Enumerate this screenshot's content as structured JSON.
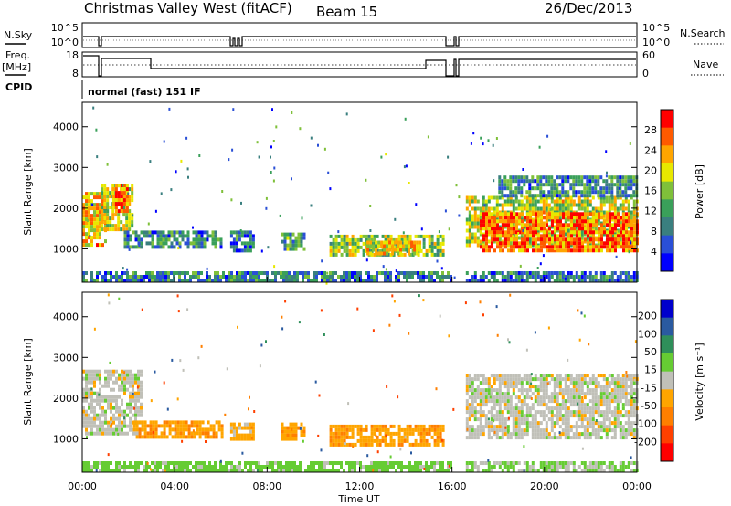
{
  "header": {
    "station": "Christmas Valley West (fitACF)",
    "beam": "Beam 15",
    "date": "26/Dec/2013"
  },
  "status_panels": {
    "nsky_label": "N.Sky",
    "nsky_ticks": [
      "10^5",
      "10^0"
    ],
    "nsearch_label": "N.Search",
    "nsearch_ticks": [
      "10^5",
      "10^0"
    ],
    "freq_label": "Freq.",
    "freq_unit": "[MHz]",
    "freq_ticks": [
      "18",
      "8"
    ],
    "nave_label": "Nave",
    "nave_ticks": [
      "60",
      "0"
    ],
    "cpid_label": "CPID",
    "cpid_value": "normal (fast) 151 IF"
  },
  "colors": {
    "power_scale": [
      "#0000ff",
      "#2a4fd6",
      "#3a7f7f",
      "#3aa05a",
      "#7fc03a",
      "#e8e800",
      "#ffa500",
      "#ff5a00",
      "#ff0000"
    ],
    "velocity_scale": [
      "#0000cc",
      "#2a5aa0",
      "#2f8f5a",
      "#66cc33",
      "#c0c0b8",
      "#ffa500",
      "#ff7f00",
      "#ff4000",
      "#ff0000"
    ]
  },
  "chart_data": [
    {
      "type": "heatmap",
      "name": "power",
      "ylabel": "Slant Range [km]",
      "yticks": [
        1000,
        2000,
        3000,
        4000
      ],
      "ylim": [
        180,
        4600
      ],
      "xlim": [
        0,
        24
      ],
      "colorbar_label": "Power [dB]",
      "colorbar_ticks": [
        "4",
        "8",
        "12",
        "16",
        "20",
        "24",
        "28"
      ],
      "colorbar_range": [
        0,
        32
      ],
      "blobs": [
        {
          "t0": 0.0,
          "t1": 1.0,
          "r0": 1100,
          "r1": 2400,
          "v": 22
        },
        {
          "t0": 0.8,
          "t1": 2.2,
          "r0": 1500,
          "r1": 2600,
          "v": 18
        },
        {
          "t0": 1.3,
          "t1": 1.9,
          "r0": 1950,
          "r1": 2600,
          "v": 26
        },
        {
          "t0": 1.8,
          "t1": 6.0,
          "r0": 1050,
          "r1": 1450,
          "v": 10
        },
        {
          "t0": 6.4,
          "t1": 7.4,
          "r0": 1000,
          "r1": 1450,
          "v": 8
        },
        {
          "t0": 8.6,
          "t1": 9.6,
          "r0": 1000,
          "r1": 1400,
          "v": 12
        },
        {
          "t0": 10.7,
          "t1": 15.6,
          "r0": 850,
          "r1": 1350,
          "v": 16
        },
        {
          "t0": 12.3,
          "t1": 14.6,
          "r0": 850,
          "r1": 1200,
          "v": 20
        },
        {
          "t0": 16.6,
          "t1": 24.0,
          "r0": 1050,
          "r1": 2300,
          "v": 18
        },
        {
          "t0": 17.2,
          "t1": 24.0,
          "r0": 1000,
          "r1": 1900,
          "v": 26
        },
        {
          "t0": 18.0,
          "t1": 24.0,
          "r0": 2300,
          "r1": 2800,
          "v": 10
        },
        {
          "t0": 0.0,
          "t1": 16.0,
          "r0": 200,
          "r1": 450,
          "v": 9
        },
        {
          "t0": 16.6,
          "t1": 24.0,
          "r0": 200,
          "r1": 450,
          "v": 8
        }
      ]
    },
    {
      "type": "heatmap",
      "name": "velocity",
      "ylabel": "Slant Range [km]",
      "xlabel": "Time UT",
      "yticks": [
        1000,
        2000,
        3000,
        4000
      ],
      "ylim": [
        180,
        4600
      ],
      "xlim": [
        0,
        24
      ],
      "xticks": [
        "00:00",
        "04:00",
        "08:00",
        "12:00",
        "16:00",
        "20:00",
        "00:00"
      ],
      "colorbar_label": "Velocity [m s⁻¹]",
      "colorbar_ticks": [
        "200",
        "100",
        "50",
        "15",
        "-15",
        "-50",
        "-100",
        "-200"
      ],
      "blobs": [
        {
          "t0": 0.0,
          "t1": 2.5,
          "r0": 1100,
          "r1": 2700,
          "v": 0
        },
        {
          "t0": 2.2,
          "t1": 6.0,
          "r0": 1050,
          "r1": 1450,
          "v": -40
        },
        {
          "t0": 6.4,
          "t1": 7.4,
          "r0": 1000,
          "r1": 1400,
          "v": -30
        },
        {
          "t0": 8.6,
          "t1": 9.6,
          "r0": 1000,
          "r1": 1400,
          "v": -40
        },
        {
          "t0": 10.7,
          "t1": 15.6,
          "r0": 850,
          "r1": 1350,
          "v": -40
        },
        {
          "t0": 16.6,
          "t1": 24.0,
          "r0": 1000,
          "r1": 2600,
          "v": 0
        },
        {
          "t0": 0.0,
          "t1": 16.0,
          "r0": 200,
          "r1": 450,
          "v": 30
        },
        {
          "t0": 16.6,
          "t1": 24.0,
          "r0": 200,
          "r1": 450,
          "v": 20
        }
      ]
    }
  ]
}
